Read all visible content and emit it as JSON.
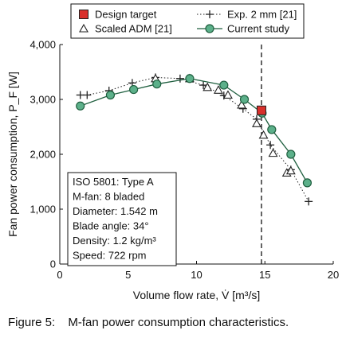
{
  "caption": {
    "number": "Figure 5:",
    "text": "M-fan power consumption characteristics."
  },
  "colors": {
    "design_target": "#d9302b",
    "current_study_fill": "#5cb08a",
    "current_study_line": "#1f5f3f",
    "exp_line": "#222222",
    "adm_marker": "#222222"
  },
  "chart_data": {
    "type": "line",
    "xlabel": "Volume flow rate, V̇ [m³/s]",
    "ylabel": "Fan power consumption, P_F [W]",
    "xlim": [
      0,
      20
    ],
    "ylim": [
      0,
      4000
    ],
    "xticks": [
      0,
      5,
      10,
      15,
      20
    ],
    "xtick_labels": [
      "0",
      "5",
      "10",
      "15",
      "20"
    ],
    "yticks": [
      0,
      1000,
      2000,
      3000,
      4000
    ],
    "ytick_labels": [
      "0",
      "1,000",
      "2,000",
      "3,000",
      "4,000"
    ],
    "grid": false,
    "legend_position": "top",
    "series": [
      {
        "name": "Exp. 2 mm [21]",
        "marker": "plus",
        "line": "dotted",
        "x": [
          1.5,
          2.0,
          3.6,
          5.3,
          7.0,
          8.8,
          10.5,
          12.0,
          13.4,
          14.4,
          15.4,
          16.9,
          18.2
        ],
        "y": [
          3080,
          3080,
          3160,
          3300,
          3400,
          3380,
          3260,
          3070,
          2830,
          2640,
          2170,
          1720,
          1140
        ]
      },
      {
        "name": "Scaled ADM [21]",
        "marker": "triangle",
        "line": "none",
        "x": [
          7.0,
          9.5,
          10.8,
          11.6,
          12.3,
          13.3,
          14.4,
          14.9,
          15.6,
          16.6,
          16.9
        ],
        "y": [
          3380,
          3380,
          3220,
          3170,
          3080,
          2900,
          2560,
          2350,
          2020,
          1660,
          1700
        ]
      },
      {
        "name": "Current study",
        "marker": "circle",
        "line": "solid",
        "x": [
          1.5,
          3.7,
          5.4,
          7.1,
          9.5,
          12.0,
          13.5,
          14.8,
          15.5,
          16.9,
          18.1
        ],
        "y": [
          2880,
          3080,
          3180,
          3280,
          3380,
          3260,
          3000,
          2750,
          2450,
          2000,
          1480
        ]
      },
      {
        "name": "Design target",
        "marker": "square",
        "line": "none",
        "x": [
          14.75
        ],
        "y": [
          2800
        ]
      }
    ],
    "reference_lines": [
      {
        "orientation": "vertical",
        "x": 14.75,
        "style": "dashed"
      }
    ],
    "annotation": {
      "lines": [
        "ISO 5801: Type A",
        "M-fan: 8 bladed",
        "Diameter: 1.542 m",
        "Blade angle: 34°",
        "Density: 1.2 kg/m³",
        "Speed: 722 rpm"
      ]
    }
  }
}
